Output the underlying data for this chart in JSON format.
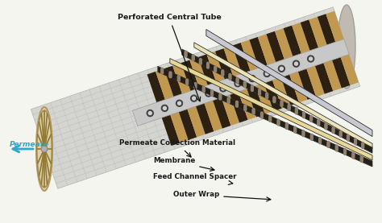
{
  "bg_color": "#f5f5f0",
  "labels": {
    "perforated_central_tube": "Perforated Central Tube",
    "permeate": "Permeate",
    "permeate_collection": "Permeate Collection Material",
    "membrane": "Membrane",
    "feed_channel_spacer": "Feed Channel Spacer",
    "outer_wrap": "Outer Wrap"
  },
  "colors": {
    "cylinder_body": "#d0d0cc",
    "cylinder_grid": "#b0b0a8",
    "cylinder_dark_band": "#504030",
    "cylinder_mid_band": "#c8a870",
    "end_cap_bg": "#e0d4b8",
    "end_cap_ring": "#c8b488",
    "spoke_color": "#9a8050",
    "hub_color": "#b0b0b0",
    "central_tube_body": "#d0d0d0",
    "central_tube_dot": "#606060",
    "layer_dark_mesh": "#2a2010",
    "layer_cream": "#e8d898",
    "layer_light_cream": "#f0e8c0",
    "layer_gray": "#c0c0c8",
    "arrow_permeate": "#30a8c8",
    "text_color": "#1a1a1a",
    "annotation_line": "#111111"
  },
  "figsize": [
    4.74,
    2.77
  ],
  "dpi": 100
}
